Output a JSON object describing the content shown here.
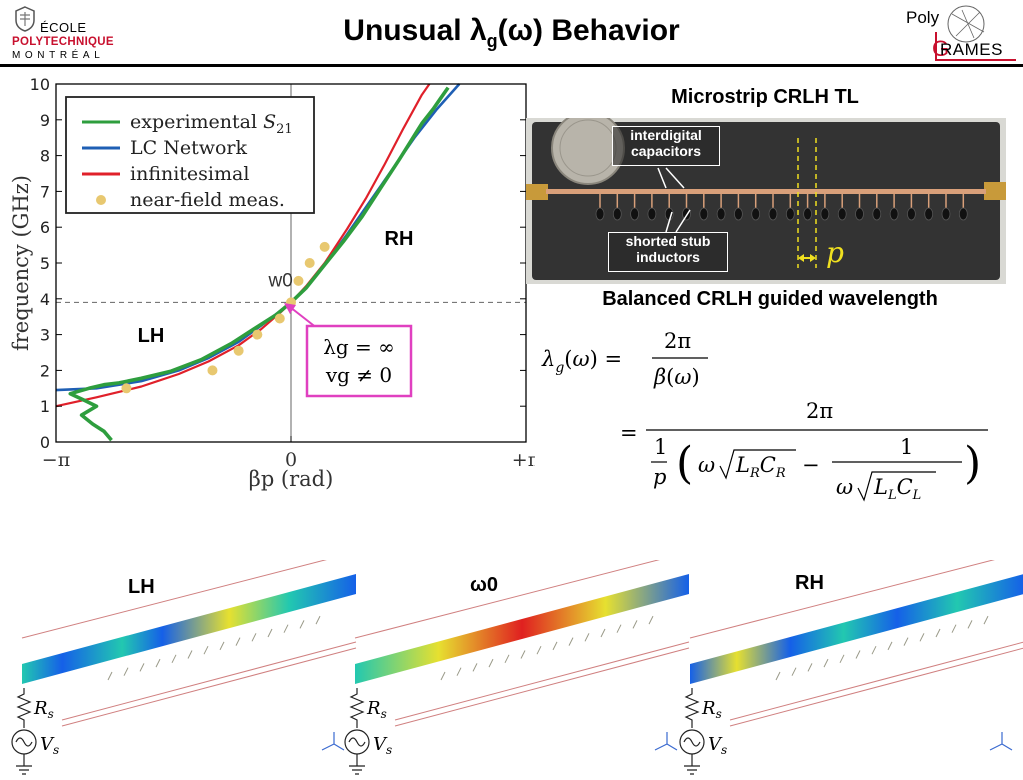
{
  "header": {
    "title_pre": "Unusual λ",
    "title_sub": "g",
    "title_post": "(ω) Behavior",
    "left_logo": {
      "line1": "ÉCOLE",
      "line2": "POLYTECHNIQUE",
      "line3": "MONTRÉAL"
    },
    "right_logo": {
      "line1": "Poly",
      "line2": "RAMES"
    }
  },
  "chart_data": {
    "type": "line",
    "xlabel": "βp (rad)",
    "ylabel": "frequency (GHz)",
    "xlim": [
      -3.14159,
      3.14159
    ],
    "ylim": [
      0,
      10
    ],
    "xticks": [
      {
        "v": -3.14159,
        "label": "−π"
      },
      {
        "v": 0,
        "label": "0"
      },
      {
        "v": 3.14159,
        "label": "+π"
      }
    ],
    "yticks": [
      0,
      1,
      2,
      3,
      4,
      5,
      6,
      7,
      8,
      9,
      10
    ],
    "hline": 3.9,
    "vline": 0,
    "legend_position": "top-left",
    "series": [
      {
        "name": "LC Network",
        "color": "#1f5fb4",
        "width": 2.6,
        "x": [
          -3.14,
          -2.6,
          -2.0,
          -1.5,
          -1.1,
          -0.7,
          -0.4,
          -0.15,
          0,
          0.2,
          0.45,
          0.75,
          1.05,
          1.35,
          1.65,
          1.95,
          2.25
        ],
        "y": [
          1.45,
          1.5,
          1.7,
          2.0,
          2.35,
          2.8,
          3.25,
          3.65,
          3.9,
          4.3,
          4.95,
          5.8,
          6.7,
          7.6,
          8.5,
          9.3,
          10.0
        ]
      },
      {
        "name": "infinitesimal",
        "color": "#e0202a",
        "width": 2.2,
        "x": [
          -3.14,
          -2.6,
          -2.0,
          -1.5,
          -1.1,
          -0.7,
          -0.4,
          -0.15,
          0,
          0.2,
          0.45,
          0.75,
          1.0,
          1.25,
          1.5,
          1.75,
          1.85
        ],
        "y": [
          1.0,
          1.25,
          1.55,
          1.9,
          2.25,
          2.7,
          3.15,
          3.6,
          3.9,
          4.35,
          5.0,
          5.95,
          6.8,
          7.75,
          8.75,
          9.7,
          10.0
        ]
      },
      {
        "name": "experimental S21",
        "color": "#2e9e3e",
        "width": 3.6,
        "x": [
          -2.4,
          -2.5,
          -2.65,
          -2.8,
          -2.6,
          -2.75,
          -2.95,
          -2.7,
          -2.5,
          -2.3,
          -2.0,
          -1.6,
          -1.2,
          -0.8,
          -0.5,
          -0.2,
          0,
          0.2,
          0.45,
          0.7,
          0.95,
          1.2,
          1.45,
          1.6,
          1.75,
          1.9,
          2.0,
          2.1
        ],
        "y": [
          0.05,
          0.3,
          0.5,
          0.75,
          1.0,
          1.15,
          1.35,
          1.5,
          1.6,
          1.65,
          1.78,
          1.98,
          2.3,
          2.75,
          3.15,
          3.55,
          3.9,
          4.3,
          4.95,
          5.6,
          6.3,
          7.1,
          7.9,
          8.4,
          8.9,
          9.3,
          9.6,
          9.9
        ]
      },
      {
        "name": "near-field meas.",
        "color": "#e8c870",
        "marker": true,
        "x": [
          -2.2,
          -1.05,
          -0.7,
          -0.45,
          -0.15,
          0,
          0.1,
          0.25,
          0.45
        ],
        "y": [
          1.5,
          2.0,
          2.55,
          3.0,
          3.45,
          3.9,
          4.5,
          5.0,
          5.45
        ]
      }
    ],
    "legend": [
      {
        "label": "experimental",
        "math": "S",
        "sub": "21",
        "color": "#2e9e3e",
        "kind": "line"
      },
      {
        "label": "LC Network",
        "color": "#1f5fb4",
        "kind": "line"
      },
      {
        "label": "infinitesimal",
        "color": "#e0202a",
        "kind": "line"
      },
      {
        "label": "near-field meas.",
        "color": "#e8c870",
        "kind": "dot"
      }
    ],
    "annotations": [
      {
        "text": "LH",
        "x": -2.05,
        "y": 2.8
      },
      {
        "text": "RH",
        "x": 1.25,
        "y": 5.5
      },
      {
        "text": "w0",
        "x": -0.3,
        "y": 4.35
      }
    ],
    "callout": {
      "line1": "λg = ∞",
      "line2": "vg ≠ 0",
      "color": "#e040c0"
    }
  },
  "photo": {
    "title": "Microstrip CRLH TL",
    "cap_callout_l1": "interdigital",
    "cap_callout_l2": "capacitors",
    "ind_callout_l1": "shorted stub",
    "ind_callout_l2": "inductors",
    "p_label": "p"
  },
  "formula": {
    "title": "Balanced CRLH guided wavelength"
  },
  "sims": {
    "labels": [
      "LH",
      "ω0",
      "RH"
    ],
    "source_r": "Rs",
    "source_v": "Vs",
    "colors": {
      "low": "#1560e8",
      "mid": "#22c8b0",
      "high": "#e6e030",
      "peak": "#e02020"
    }
  }
}
